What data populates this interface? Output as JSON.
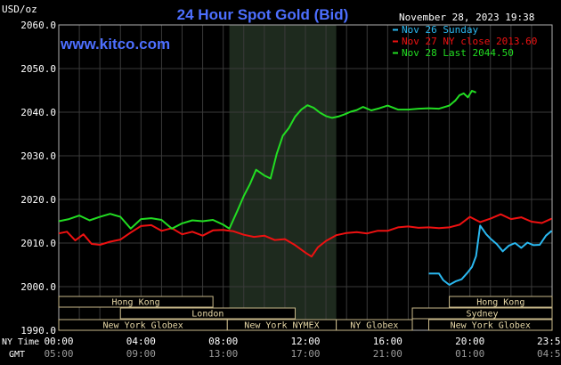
{
  "chart_data": {
    "type": "line",
    "title": "24 Hour Spot Gold (Bid)",
    "ylabel": "USD/oz",
    "watermark": "www.kitco.com",
    "timestamp": "November 28, 2023 19:38",
    "ylim": [
      1990,
      2060
    ],
    "yticks": [
      1990.0,
      2000.0,
      2010.0,
      2020.0,
      2030.0,
      2040.0,
      2050.0,
      2060.0
    ],
    "ytick_labels": [
      "1990.0",
      "2000.0",
      "2010.0",
      "2020.0",
      "2030.0",
      "2040.0",
      "2050.0",
      "2060.0"
    ],
    "xlim": [
      0,
      24
    ],
    "x_unit": "hours (NY time)",
    "xticks": [
      0,
      4,
      8,
      12,
      16,
      20,
      23.98
    ],
    "xtick_labels_ny": [
      "00:00",
      "04:00",
      "08:00",
      "12:00",
      "16:00",
      "20:00",
      "23:59"
    ],
    "xtick_labels_gmt": [
      "05:00",
      "09:00",
      "13:00",
      "17:00",
      "21:00",
      "01:00",
      "04:59"
    ],
    "row_label_ny": "NY Time",
    "row_label_gmt": "GMT",
    "shaded_region": [
      8.3,
      13.5
    ],
    "grid": true,
    "legend_position": "top-right",
    "series": [
      {
        "name": "Nov 26 Sunday",
        "color": "#2ab8f0",
        "x": [
          18.0,
          18.5,
          18.7,
          19.0,
          19.3,
          19.6,
          19.9,
          20.1,
          20.3,
          20.5,
          20.8,
          21.0,
          21.3,
          21.6,
          21.9,
          22.2,
          22.5,
          22.8,
          23.1,
          23.4,
          23.7,
          23.98
        ],
        "y": [
          2003.0,
          2003.0,
          2001.5,
          2000.4,
          2001.2,
          2001.7,
          2003.3,
          2004.5,
          2007.0,
          2014.0,
          2012.0,
          2011.0,
          2009.8,
          2008.1,
          2009.4,
          2010.0,
          2008.9,
          2010.1,
          2009.5,
          2009.6,
          2011.7,
          2012.8
        ]
      },
      {
        "name": "Nov 27 NY close 2013.60",
        "color": "#ee1111",
        "x": [
          0,
          0.4,
          0.8,
          1.2,
          1.6,
          2.0,
          2.5,
          3.0,
          3.5,
          4.0,
          4.5,
          5.0,
          5.5,
          6.0,
          6.5,
          7.0,
          7.5,
          8.0,
          8.5,
          9.0,
          9.5,
          10.0,
          10.5,
          11.0,
          11.5,
          12.0,
          12.3,
          12.6,
          13.0,
          13.5,
          14.0,
          14.5,
          15.0,
          15.5,
          16.0,
          16.5,
          17.0,
          17.5,
          18.0,
          18.5,
          19.0,
          19.5,
          20.0,
          20.5,
          21.0,
          21.5,
          22.0,
          22.5,
          23.0,
          23.5,
          23.98
        ],
        "y": [
          2012.2,
          2012.6,
          2010.6,
          2012.0,
          2009.8,
          2009.6,
          2010.3,
          2010.8,
          2012.4,
          2013.9,
          2014.1,
          2012.8,
          2013.4,
          2012.0,
          2012.6,
          2011.7,
          2012.9,
          2013.0,
          2012.7,
          2011.9,
          2011.4,
          2011.7,
          2010.7,
          2010.9,
          2009.5,
          2007.8,
          2006.9,
          2009.0,
          2010.5,
          2011.8,
          2012.3,
          2012.5,
          2012.2,
          2012.8,
          2012.8,
          2013.6,
          2013.8,
          2013.5,
          2013.6,
          2013.4,
          2013.6,
          2014.2,
          2016.0,
          2014.8,
          2015.6,
          2016.6,
          2015.5,
          2015.9,
          2014.9,
          2014.6,
          2015.6
        ]
      },
      {
        "name": "Nov 28 Last 2044.50",
        "color": "#22dd22",
        "x": [
          0,
          0.5,
          1.0,
          1.5,
          2.0,
          2.5,
          3.0,
          3.5,
          4.0,
          4.5,
          5.0,
          5.5,
          6.0,
          6.5,
          7.0,
          7.5,
          8.0,
          8.3,
          8.7,
          9.0,
          9.3,
          9.6,
          10.0,
          10.3,
          10.6,
          10.9,
          11.2,
          11.5,
          11.8,
          12.1,
          12.4,
          12.7,
          13.0,
          13.3,
          13.6,
          13.9,
          14.2,
          14.5,
          14.8,
          15.2,
          15.6,
          16.0,
          16.5,
          17.0,
          17.5,
          18.0,
          18.5,
          19.0,
          19.3,
          19.5,
          19.7,
          19.9,
          20.1,
          20.3
        ],
        "y": [
          2015.0,
          2015.5,
          2016.3,
          2015.2,
          2016.0,
          2016.7,
          2016.0,
          2013.3,
          2015.5,
          2015.7,
          2015.3,
          2013.3,
          2014.5,
          2015.2,
          2015.0,
          2015.3,
          2014.2,
          2013.3,
          2017.5,
          2020.8,
          2023.5,
          2026.8,
          2025.5,
          2024.8,
          2030.4,
          2034.6,
          2036.4,
          2039.0,
          2040.6,
          2041.6,
          2041.0,
          2039.9,
          2039.1,
          2038.7,
          2039.0,
          2039.5,
          2040.1,
          2040.5,
          2041.2,
          2040.4,
          2040.9,
          2041.5,
          2040.6,
          2040.6,
          2040.8,
          2040.9,
          2040.8,
          2041.5,
          2042.7,
          2043.9,
          2044.3,
          2043.4,
          2044.9,
          2044.5
        ]
      }
    ],
    "sessions": [
      {
        "label": "Hong Kong",
        "start": 0,
        "end": 7.5,
        "row": 0
      },
      {
        "label": "Hong Kong",
        "start": 19.0,
        "end": 24,
        "row": 0
      },
      {
        "label": "London",
        "start": 3.0,
        "end": 11.5,
        "row": 1
      },
      {
        "label": "Sydney",
        "start": 17.2,
        "end": 24,
        "row": 1
      },
      {
        "label": "New York Globex",
        "start": 0,
        "end": 8.2,
        "row": 2
      },
      {
        "label": "New York NYMEX",
        "start": 8.2,
        "end": 13.5,
        "row": 2
      },
      {
        "label": "NY Globex",
        "start": 13.5,
        "end": 17.2,
        "row": 2
      },
      {
        "label": "New York Globex",
        "start": 18.0,
        "end": 24,
        "row": 2
      }
    ]
  }
}
